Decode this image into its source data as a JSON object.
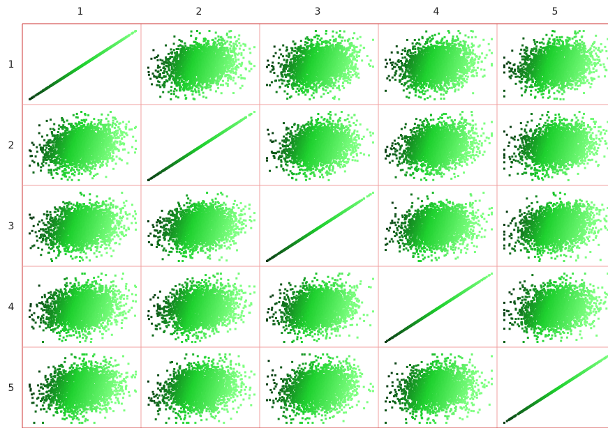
{
  "chart_data": {
    "type": "scatter",
    "variables": [
      "1",
      "2",
      "3",
      "4",
      "5"
    ],
    "column_labels": [
      "1",
      "2",
      "3",
      "4",
      "5"
    ],
    "row_labels": [
      "1",
      "2",
      "3",
      "4",
      "5"
    ],
    "diagonal_relationship": "identity line",
    "color_scale": {
      "low": "#0a3d14",
      "mid": "#1fd12f",
      "high": "#7dff80"
    },
    "grid_major_color": "#cc3333",
    "grid_minor_color": "#f0a0a0",
    "points_per_panel": 2600,
    "right_column_clipped": true
  }
}
